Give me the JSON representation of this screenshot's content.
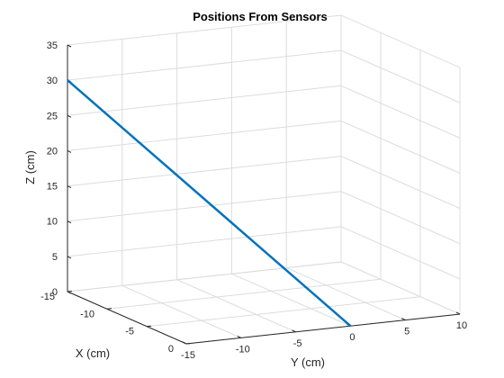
{
  "chart_data": {
    "type": "line",
    "title": "Positions From Sensors",
    "xlabel": "X (cm)",
    "ylabel": "Y (cm)",
    "zlabel": "Z (cm)",
    "xlim": [
      -15,
      0
    ],
    "ylim": [
      -15,
      10
    ],
    "zlim": [
      0,
      35
    ],
    "x_ticks": [
      "-15",
      "-10",
      "-5",
      "0"
    ],
    "y_ticks": [
      "-15",
      "-10",
      "-5",
      "0",
      "5",
      "10"
    ],
    "z_ticks": [
      "0",
      "5",
      "10",
      "15",
      "20",
      "25",
      "30",
      "35"
    ],
    "grid": true,
    "series": [
      {
        "color": "#0072bd",
        "x": [
          -15,
          0
        ],
        "y": [
          -15,
          0
        ],
        "z": [
          30,
          0
        ]
      }
    ]
  }
}
